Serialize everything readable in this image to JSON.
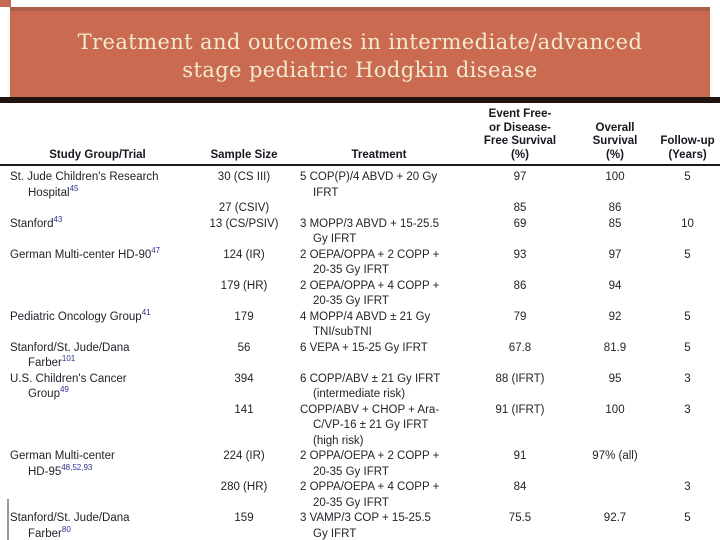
{
  "slide": {
    "title_line1": "Treatment and outcomes in intermediate/advanced",
    "title_line2": "stage pediatric Hodgkin disease"
  },
  "colors": {
    "banner_fill": "#ca6a50",
    "banner_top_edge": "#ae5f49",
    "title_text": "#f2ead0",
    "divider_band": "#20150c",
    "table_text": "#23232b",
    "reference_superscript": "#2b3390"
  },
  "table": {
    "header": {
      "study": [
        "Study Group/Trial"
      ],
      "size": [
        "Sample Size"
      ],
      "treatment": [
        "Treatment"
      ],
      "efs": [
        "Event Free-",
        "or Disease-",
        "Free Survival",
        "(%)"
      ],
      "os": [
        "Overall",
        "Survival",
        "(%)"
      ],
      "fu": [
        "Follow-up",
        "(Years)"
      ]
    },
    "rows": [
      {
        "study_lines": [
          {
            "text": "St. Jude Children's Research"
          },
          {
            "text": "Hospital",
            "ref": "45"
          }
        ],
        "size": "30 (CS III)",
        "treatment_lines": [
          "5 COP(P)/4 ABVD + 20 Gy",
          "IFRT"
        ],
        "efs": "97",
        "os": "100",
        "fu": "5"
      },
      {
        "study_lines": [],
        "size": "27 (CSIV)",
        "treatment_lines": [],
        "efs": "85",
        "os": "86",
        "fu": ""
      },
      {
        "study_lines": [
          {
            "text": "Stanford",
            "ref": "43"
          }
        ],
        "size": "13 (CS/PSIV)",
        "treatment_lines": [
          "3 MOPP/3 ABVD + 15-25.5",
          "Gy IFRT"
        ],
        "efs": "69",
        "os": "85",
        "fu": "10"
      },
      {
        "study_lines": [
          {
            "text": "German Multi-center HD-90",
            "ref": "47"
          }
        ],
        "size": "124 (IR)",
        "treatment_lines": [
          "2 OEPA/OPPA + 2 COPP +",
          "20-35 Gy IFRT"
        ],
        "efs": "93",
        "os": "97",
        "fu": "5"
      },
      {
        "study_lines": [],
        "size": "179 (HR)",
        "treatment_lines": [
          "2 OEPA/OPPA + 4 COPP +",
          "20-35 Gy IFRT"
        ],
        "efs": "86",
        "os": "94",
        "fu": ""
      },
      {
        "study_lines": [
          {
            "text": "Pediatric Oncology Group",
            "ref": "41"
          }
        ],
        "size": "179",
        "treatment_lines": [
          "4 MOPP/4 ABVD ± 21 Gy",
          "TNI/subTNI"
        ],
        "efs": "79",
        "os": "92",
        "fu": "5"
      },
      {
        "study_lines": [
          {
            "text": "Stanford/St. Jude/Dana"
          },
          {
            "text": "Farber",
            "ref": "101"
          }
        ],
        "size": "56",
        "treatment_lines": [
          "6 VEPA + 15-25 Gy IFRT"
        ],
        "efs": "67.8",
        "os": "81.9",
        "fu": "5"
      },
      {
        "study_lines": [
          {
            "text": "U.S. Children's Cancer"
          },
          {
            "text": "Group",
            "ref": "49"
          }
        ],
        "size": "394",
        "treatment_lines": [
          "6 COPP/ABV ± 21 Gy IFRT",
          "(intermediate risk)"
        ],
        "efs": "88 (IFRT)",
        "os": "95",
        "fu": "3"
      },
      {
        "study_lines": [],
        "size": "141",
        "treatment_lines": [
          "COPP/ABV + CHOP + Ara-",
          "C/VP-16 ± 21 Gy IFRT",
          "(high risk)"
        ],
        "efs": "91 (IFRT)",
        "os": "100",
        "fu": "3"
      },
      {
        "study_lines": [
          {
            "text": "German Multi-center"
          },
          {
            "text": "HD-95",
            "ref": "48,52,93"
          }
        ],
        "size": "224 (IR)",
        "treatment_lines": [
          "2 OPPA/OEPA + 2 COPP +",
          "20-35 Gy IFRT"
        ],
        "efs": "91",
        "os": "97% (all)",
        "fu": ""
      },
      {
        "study_lines": [],
        "size": "280 (HR)",
        "treatment_lines": [
          "2 OPPA/OEPA + 4 COPP +",
          "20-35 Gy IFRT"
        ],
        "efs": "84",
        "os": "",
        "fu": "3"
      },
      {
        "study_lines": [
          {
            "text": "Stanford/St. Jude/Dana"
          },
          {
            "text": "Farber",
            "ref": "80"
          }
        ],
        "size": "159",
        "treatment_lines": [
          "3 VAMP/3 COP + 15-25.5",
          "Gy IFRT"
        ],
        "efs": "75.5",
        "os": "92.7",
        "fu": "5"
      }
    ]
  }
}
